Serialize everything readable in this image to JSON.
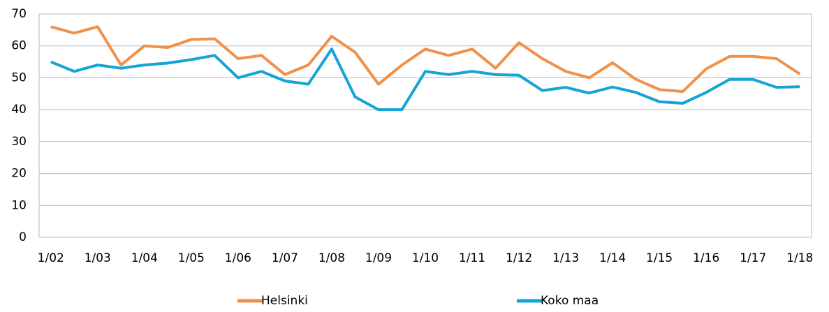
{
  "chart_data": {
    "type": "line",
    "categories": [
      "1/02",
      null,
      "1/03",
      null,
      "1/04",
      null,
      "1/05",
      null,
      "1/06",
      null,
      "1/07",
      null,
      "1/08",
      null,
      "1/09",
      null,
      "1/10",
      null,
      "1/11",
      null,
      "1/12",
      null,
      "1/13",
      null,
      "1/14",
      null,
      "1/15",
      null,
      "1/16",
      null,
      "1/17",
      null,
      "1/18"
    ],
    "series": [
      {
        "name": "Helsinki",
        "color": "#f0914a",
        "values": [
          66,
          64,
          66,
          54,
          60,
          59.5,
          62,
          62.2,
          56,
          57,
          51,
          54,
          63,
          58,
          48,
          54,
          59,
          57,
          59,
          53,
          61,
          56,
          52,
          50,
          54.7,
          49.5,
          46.3,
          45.7,
          52.8,
          56.7,
          56.7,
          56,
          51.2
        ]
      },
      {
        "name": "Koko maa",
        "color": "#16a3d6",
        "values": [
          55,
          52,
          54,
          53,
          54,
          54.6,
          55.7,
          57,
          50,
          52,
          49,
          48,
          59,
          44,
          40,
          40,
          52,
          51,
          52,
          51,
          50.8,
          46,
          47,
          45.2,
          47.1,
          45.4,
          42.5,
          42,
          45.4,
          49.5,
          49.5,
          47,
          47.2
        ]
      }
    ],
    "ylim": [
      0,
      70
    ],
    "yticks": [
      0,
      10,
      20,
      30,
      40,
      50,
      60,
      70
    ],
    "grid": true,
    "legend": "bottom"
  }
}
